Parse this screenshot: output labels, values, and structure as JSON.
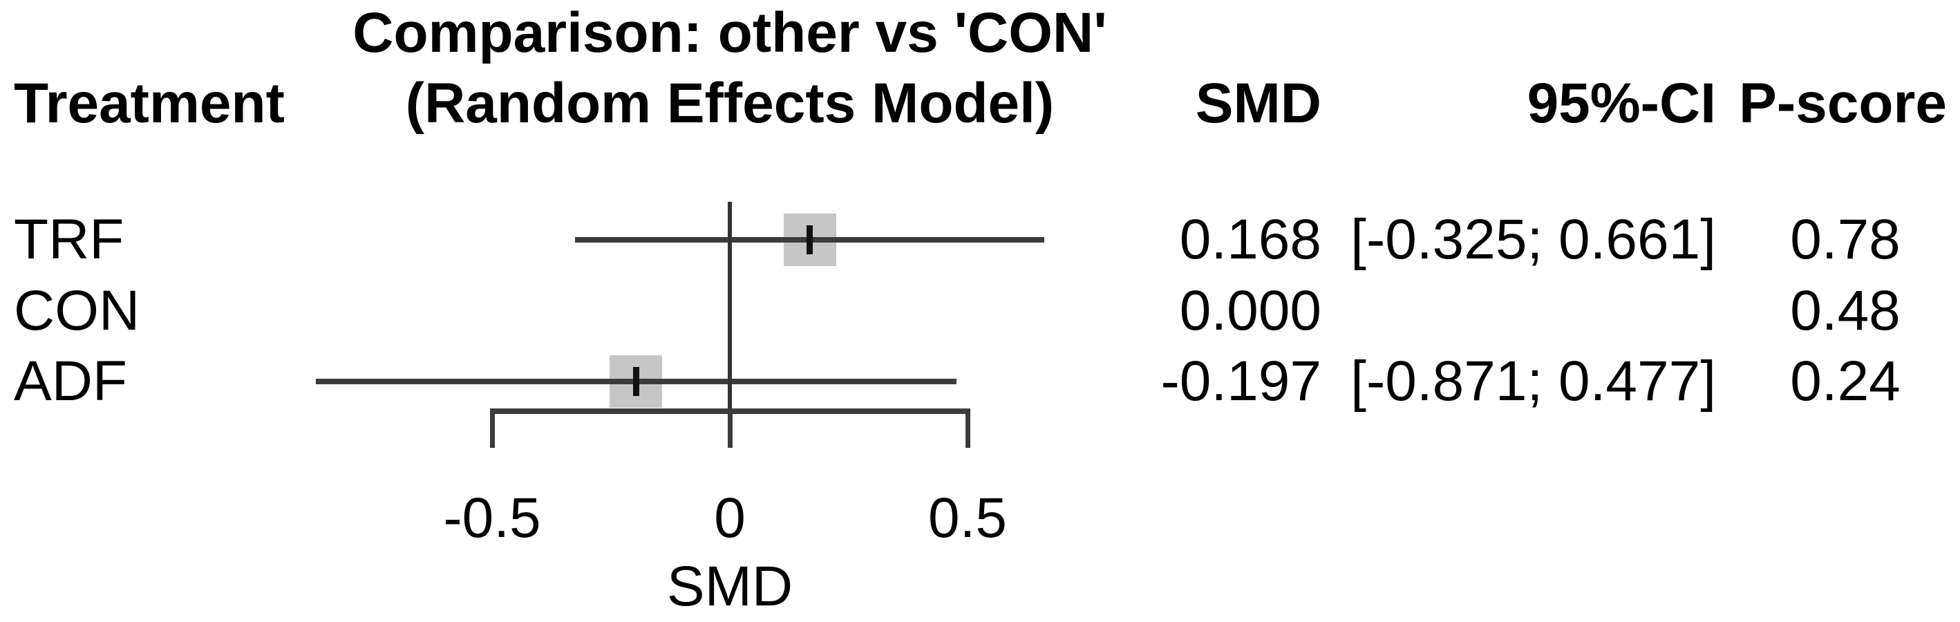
{
  "header": {
    "treatment_label": "Treatment",
    "title_line1": "Comparison: other vs 'CON'",
    "title_line2": "(Random Effects Model)",
    "smd_label": "SMD",
    "ci_label": "95%-CI",
    "pscore_label": "P-score"
  },
  "chart_data": {
    "type": "forest",
    "title": "Comparison: other vs 'CON' (Random Effects Model)",
    "effect_measure": "SMD",
    "xlabel": "SMD",
    "reference_line": 0,
    "axis_range": [
      -0.5,
      0.5
    ],
    "x_ticks": [
      -0.5,
      0,
      0.5
    ],
    "x_tick_labels": [
      "-0.5",
      "0",
      "0.5"
    ],
    "columns": [
      "Treatment",
      "SMD",
      "95%-CI",
      "P-score"
    ],
    "rows": [
      {
        "treatment": "TRF",
        "smd": 0.168,
        "ci_lower": -0.325,
        "ci_upper": 0.661,
        "has_ci": true,
        "smd_text": "0.168",
        "ci_text": "[-0.325; 0.661]",
        "pscore_text": "0.78"
      },
      {
        "treatment": "CON",
        "smd": 0.0,
        "ci_lower": null,
        "ci_upper": null,
        "has_ci": false,
        "smd_text": "0.000",
        "ci_text": "",
        "pscore_text": "0.48"
      },
      {
        "treatment": "ADF",
        "smd": -0.197,
        "ci_lower": -0.871,
        "ci_upper": 0.477,
        "has_ci": true,
        "smd_text": "-0.197",
        "ci_text": "[-0.871; 0.477]",
        "pscore_text": "0.24"
      }
    ]
  },
  "colors": {
    "text": "#000000",
    "ci_line": "#3c3c3c",
    "reference_line": "#333333",
    "square_fill": "#c6c6c6",
    "point_tick": "#111111",
    "background": "#ffffff"
  }
}
